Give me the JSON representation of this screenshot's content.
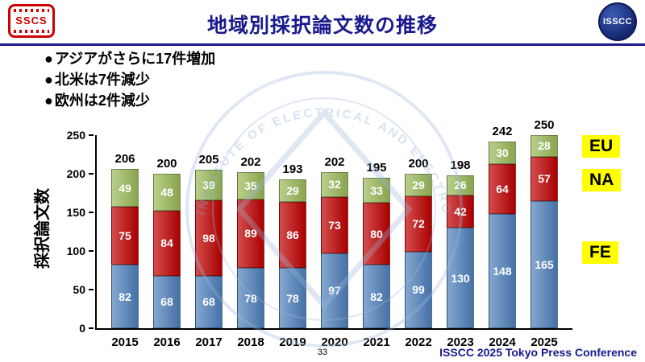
{
  "header": {
    "title": "地域別採択論文数の推移",
    "sscs_logo_text": "SSCS",
    "isscc_logo_text": "ISSCC"
  },
  "bullets": {
    "marker": "●",
    "items": [
      "アジアがさらに17件増加",
      "北米は7件減少",
      "欧州は2件減少"
    ]
  },
  "chart_data": {
    "type": "bar",
    "stacked": true,
    "title": "",
    "xlabel": "",
    "ylabel": "採択論文数",
    "ylim": [
      0,
      250
    ],
    "yticks": [
      0,
      50,
      100,
      150,
      200,
      250
    ],
    "grid": false,
    "legend_position": "right",
    "categories": [
      "2015",
      "2016",
      "2017",
      "2018",
      "2019",
      "2020",
      "2021",
      "2022",
      "2023",
      "2024",
      "2025"
    ],
    "series": [
      {
        "name": "FE",
        "color": "#4f81bd",
        "values": [
          82,
          68,
          68,
          78,
          78,
          97,
          82,
          99,
          130,
          148,
          165
        ]
      },
      {
        "name": "NA",
        "color": "#c00000",
        "values": [
          75,
          84,
          98,
          89,
          86,
          73,
          80,
          72,
          42,
          64,
          57
        ]
      },
      {
        "name": "EU",
        "color": "#9bbb59",
        "values": [
          49,
          48,
          39,
          35,
          29,
          32,
          33,
          29,
          26,
          30,
          28
        ]
      }
    ],
    "totals": [
      206,
      200,
      205,
      202,
      193,
      202,
      195,
      200,
      198,
      242,
      250
    ],
    "legend": [
      {
        "label": "EU",
        "bg": "#ffff00"
      },
      {
        "label": "NA",
        "bg": "#ffff00"
      },
      {
        "label": "FE",
        "bg": "#ffff00"
      }
    ]
  },
  "watermark": {
    "arc_text": "INSTITUTE OF ELECTRICAL AND ELECTRONICS ENGINEERS"
  },
  "footer": {
    "page_number": "33",
    "conference": "ISSCC 2025 Tokyo Press Conference"
  }
}
